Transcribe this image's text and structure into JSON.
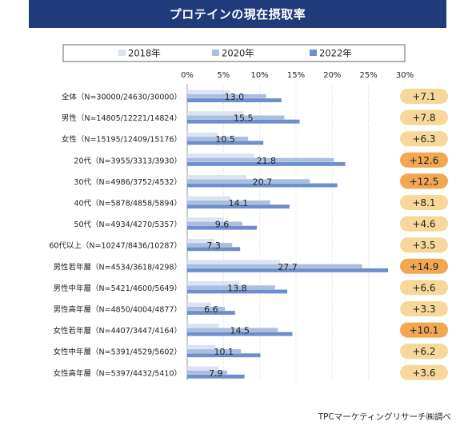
{
  "title": "プロテインの現在摂取率",
  "source": "TPCマーケティングリサーチ㈱調べ",
  "colors": {
    "2018年": "#dbe2f1",
    "2020年": "#abbde0",
    "2022年": "#6e8fcb",
    "bubble_light": "#f8d79a",
    "bubble_strong": "#f2a752",
    "title_bg": "#1f3b7a"
  },
  "chart_data": {
    "type": "bar",
    "orientation": "horizontal",
    "title": "プロテインの現在摂取率",
    "x_ticks": [
      "0%",
      "5%",
      "10%",
      "15%",
      "20%",
      "25%",
      "30%"
    ],
    "xlim": [
      0,
      30
    ],
    "grid": true,
    "legend_position": "top",
    "categories": [
      "全体（N=30000/24630/30000）",
      "男性（N=14805/12221/14824）",
      "女性（N=15195/12409/15176）",
      "20代（N=3955/3313/3930）",
      "30代（N=4986/3752/4532）",
      "40代（N=5878/4858/5894）",
      "50代（N=4934/4270/5357）",
      "60代以上（N=10247/8436/10287）",
      "男性若年層（N=4534/3618/4298）",
      "男性中年層（N=5421/4600/5649）",
      "男性高年層（N=4850/4004/4877）",
      "女性若年層（N=4407/3447/4164）",
      "女性中年層（N=5391/4529/5602）",
      "女性高年層（N=5397/4432/5410）"
    ],
    "series": [
      {
        "name": "2018年",
        "values": [
          5.9,
          7.7,
          4.2,
          9.2,
          8.2,
          6.0,
          5.0,
          3.8,
          12.8,
          7.2,
          3.3,
          4.4,
          3.9,
          4.3
        ]
      },
      {
        "name": "2020年",
        "values": [
          10.9,
          13.4,
          8.4,
          20.2,
          16.9,
          11.4,
          7.6,
          6.2,
          24.1,
          12.1,
          5.2,
          12.5,
          7.4,
          5.5
        ]
      },
      {
        "name": "2022年",
        "values": [
          13.0,
          15.5,
          10.5,
          21.8,
          20.7,
          14.1,
          9.6,
          7.3,
          27.7,
          13.8,
          6.6,
          14.5,
          10.1,
          7.9
        ]
      }
    ],
    "labels_2022": [
      "13.0",
      "15.5",
      "10.5",
      "21.8",
      "20.7",
      "14.1",
      "9.6",
      "7.3",
      "27.7",
      "13.8",
      "6.6",
      "14.5",
      "10.1",
      "7.9"
    ],
    "change_labels": [
      "+7.1",
      "+7.8",
      "+6.3",
      "+12.6",
      "+12.5",
      "+8.1",
      "+4.6",
      "+3.5",
      "+14.9",
      "+6.6",
      "+3.3",
      "+10.1",
      "+6.2",
      "+3.6"
    ],
    "change_highlight": [
      false,
      false,
      false,
      true,
      true,
      false,
      false,
      false,
      true,
      false,
      false,
      true,
      false,
      false
    ]
  }
}
